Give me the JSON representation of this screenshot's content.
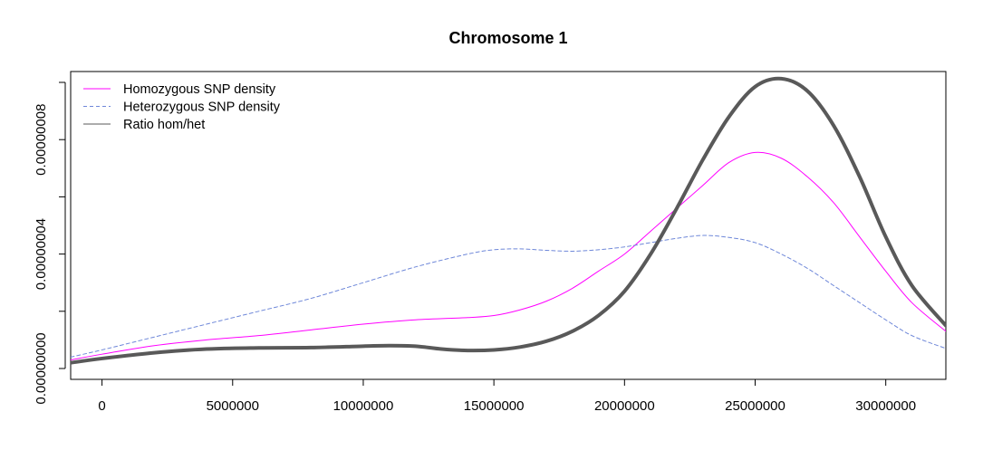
{
  "chart_data": {
    "type": "line",
    "title": "Chromosome 1",
    "xlabel": "",
    "ylabel": "",
    "xlim": [
      -1200000,
      32300000
    ],
    "ylim": [
      -3.8e-09,
      1.038e-07
    ],
    "x_ticks": [
      0,
      5000000,
      10000000,
      15000000,
      20000000,
      25000000,
      30000000
    ],
    "x_tick_labels": [
      "0",
      "5000000",
      "10000000",
      "15000000",
      "20000000",
      "25000000",
      "30000000"
    ],
    "y_ticks": [
      0,
      2e-08,
      4e-08,
      6e-08,
      8e-08,
      1e-07
    ],
    "y_tick_labels": [
      "0.00000000",
      "",
      "0.00000004",
      "",
      "0.00000008",
      ""
    ],
    "legend_position": "top-left",
    "grid": false,
    "series": [
      {
        "name": "Homozygous SNP density",
        "color": "#ff00ff",
        "dash": "solid",
        "width": 1,
        "x": [
          -1200000,
          0,
          2000000,
          4000000,
          6000000,
          8000000,
          10000000,
          12000000,
          14000000,
          15000000,
          16000000,
          17000000,
          18000000,
          19000000,
          20000000,
          21000000,
          22000000,
          23000000,
          24000000,
          25000000,
          26000000,
          27000000,
          28000000,
          29000000,
          30000000,
          31000000,
          32300000
        ],
        "y": [
          3e-09,
          5e-09,
          8e-09,
          1e-08,
          1.15e-08,
          1.35e-08,
          1.55e-08,
          1.7e-08,
          1.78e-08,
          1.85e-08,
          2.05e-08,
          2.35e-08,
          2.8e-08,
          3.4e-08,
          4e-08,
          4.8e-08,
          5.6e-08,
          6.4e-08,
          7.2e-08,
          7.55e-08,
          7.35e-08,
          6.7e-08,
          5.8e-08,
          4.6e-08,
          3.4e-08,
          2.3e-08,
          1.3e-08
        ]
      },
      {
        "name": "Heterozygous SNP density",
        "color": "#6f88d9",
        "dash": "dashed",
        "width": 1,
        "x": [
          -1200000,
          0,
          2000000,
          4000000,
          6000000,
          8000000,
          10000000,
          12000000,
          14000000,
          15000000,
          16000000,
          17000000,
          18000000,
          19000000,
          20000000,
          21000000,
          22000000,
          23000000,
          24000000,
          25000000,
          26000000,
          27000000,
          28000000,
          29000000,
          30000000,
          31000000,
          32300000
        ],
        "y": [
          4e-09,
          6.5e-09,
          1.1e-08,
          1.55e-08,
          2e-08,
          2.45e-08,
          3e-08,
          3.55e-08,
          4e-08,
          4.15e-08,
          4.18e-08,
          4.13e-08,
          4.1e-08,
          4.15e-08,
          4.25e-08,
          4.4e-08,
          4.55e-08,
          4.65e-08,
          4.58e-08,
          4.4e-08,
          4e-08,
          3.5e-08,
          2.9e-08,
          2.3e-08,
          1.7e-08,
          1.15e-08,
          7e-09
        ]
      },
      {
        "name": "Ratio hom/het",
        "color": "#595959",
        "dash": "solid",
        "width": 4,
        "x": [
          -1200000,
          0,
          2000000,
          4000000,
          6000000,
          8000000,
          10000000,
          11000000,
          12000000,
          13000000,
          14000000,
          15000000,
          16000000,
          17000000,
          18000000,
          19000000,
          20000000,
          21000000,
          22000000,
          23000000,
          24000000,
          25000000,
          26000000,
          27000000,
          28000000,
          29000000,
          30000000,
          31000000,
          32300000
        ],
        "y": [
          2e-09,
          3.5e-09,
          5.5e-09,
          6.8e-09,
          7.2e-09,
          7.3e-09,
          7.8e-09,
          8e-09,
          7.8e-09,
          6.8e-09,
          6.3e-09,
          6.5e-09,
          7.5e-09,
          9.5e-09,
          1.3e-08,
          1.85e-08,
          2.7e-08,
          4e-08,
          5.6e-08,
          7.3e-08,
          8.8e-08,
          9.85e-08,
          1.013e-07,
          9.7e-08,
          8.5e-08,
          6.7e-08,
          4.6e-08,
          2.9e-08,
          1.5e-08
        ]
      }
    ]
  }
}
